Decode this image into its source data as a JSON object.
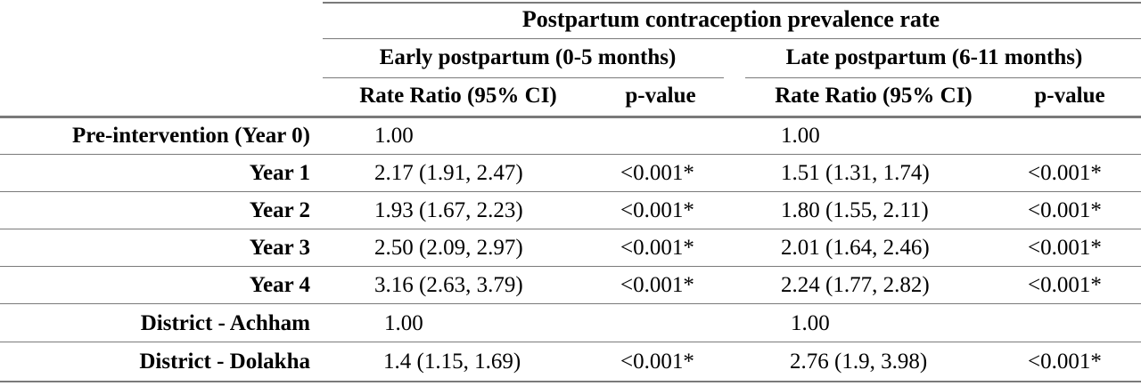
{
  "header": {
    "main": "Postpartum contraception prevalence rate",
    "early": "Early postpartum (0-5 months)",
    "late": "Late postpartum (6-11 months)",
    "col_rate_early": "Rate Ratio (95% CI)",
    "col_p_early": "p-value",
    "col_rate_late": "Rate Ratio (95% CI)",
    "col_p_late": "p-value"
  },
  "rows": [
    {
      "label": "Pre-intervention (Year 0)",
      "early_rr": "1.00",
      "early_p": "",
      "late_rr": "1.00",
      "late_p": ""
    },
    {
      "label": "Year 1",
      "early_rr": "2.17 (1.91, 2.47)",
      "early_p": "<0.001*",
      "late_rr": "1.51 (1.31, 1.74)",
      "late_p": "<0.001*"
    },
    {
      "label": "Year 2",
      "early_rr": "1.93 (1.67, 2.23)",
      "early_p": "<0.001*",
      "late_rr": "1.80 (1.55, 2.11)",
      "late_p": "<0.001*"
    },
    {
      "label": "Year 3",
      "early_rr": "2.50 (2.09, 2.97)",
      "early_p": "<0.001*",
      "late_rr": "2.01 (1.64, 2.46)",
      "late_p": "<0.001*"
    },
    {
      "label": "Year 4",
      "early_rr": "3.16 (2.63, 3.79)",
      "early_p": "<0.001*",
      "late_rr": "2.24 (1.77, 2.82)",
      "late_p": "<0.001*"
    },
    {
      "label": "District - Achham",
      "early_rr": "1.00",
      "early_p": "",
      "late_rr": "1.00",
      "late_p": ""
    },
    {
      "label": "District - Dolakha",
      "early_rr": "1.4 (1.15, 1.69)",
      "early_p": "<0.001*",
      "late_rr": "2.76 (1.9, 3.98)",
      "late_p": "<0.001*"
    }
  ]
}
